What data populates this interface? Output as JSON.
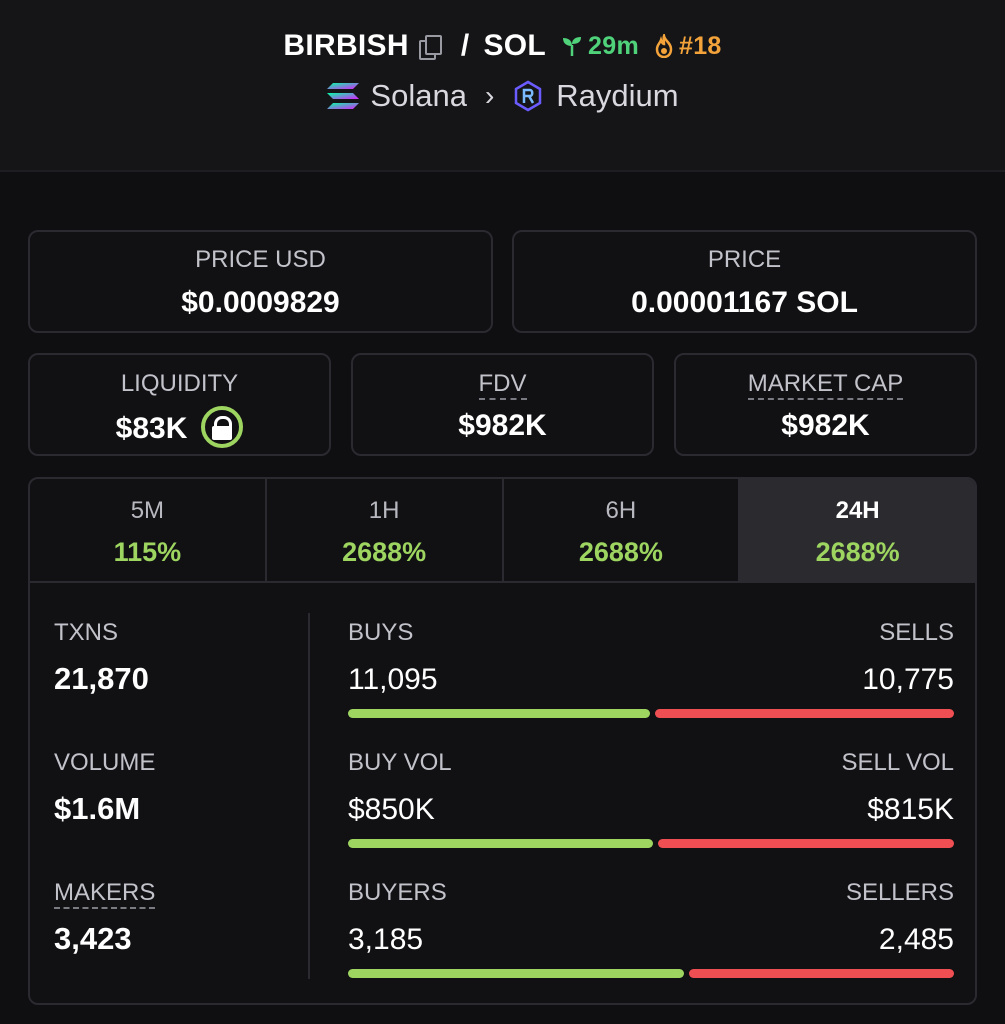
{
  "header": {
    "token": "BIRBISH",
    "separator": "/",
    "quote": "SOL",
    "age": "29m",
    "rank": "#18",
    "chain": "Solana",
    "dex": "Raydium"
  },
  "prices": {
    "price_usd_label": "PRICE USD",
    "price_usd_value": "$0.0009829",
    "price_label": "PRICE",
    "price_value": "0.00001167 SOL"
  },
  "metrics": {
    "liquidity_label": "LIQUIDITY",
    "liquidity_value": "$83K",
    "fdv_label": "FDV",
    "fdv_value": "$982K",
    "mcap_label": "MARKET CAP",
    "mcap_value": "$982K"
  },
  "tabs": [
    {
      "label": "5M",
      "change": "115%"
    },
    {
      "label": "1H",
      "change": "2688%"
    },
    {
      "label": "6H",
      "change": "2688%"
    },
    {
      "label": "24H",
      "change": "2688%"
    }
  ],
  "active_tab": "24H",
  "stats": {
    "txns_label": "TXNS",
    "txns_value": "21,870",
    "volume_label": "VOLUME",
    "volume_value": "$1.6M",
    "makers_label": "MAKERS",
    "makers_value": "3,423"
  },
  "rows": [
    {
      "left_label": "BUYS",
      "left_value": "11,095",
      "right_label": "SELLS",
      "right_value": "10,775",
      "buy_fraction": 0.507
    },
    {
      "left_label": "BUY VOL",
      "left_value": "$850K",
      "right_label": "SELL VOL",
      "right_value": "$815K",
      "buy_fraction": 0.511
    },
    {
      "left_label": "BUYERS",
      "left_value": "3,185",
      "right_label": "SELLERS",
      "right_value": "2,485",
      "buy_fraction": 0.562
    }
  ],
  "colors": {
    "positive": "#9dd560",
    "negative": "#ef4f53",
    "age_green": "#4fd27a",
    "rank_orange": "#f3a33a"
  }
}
